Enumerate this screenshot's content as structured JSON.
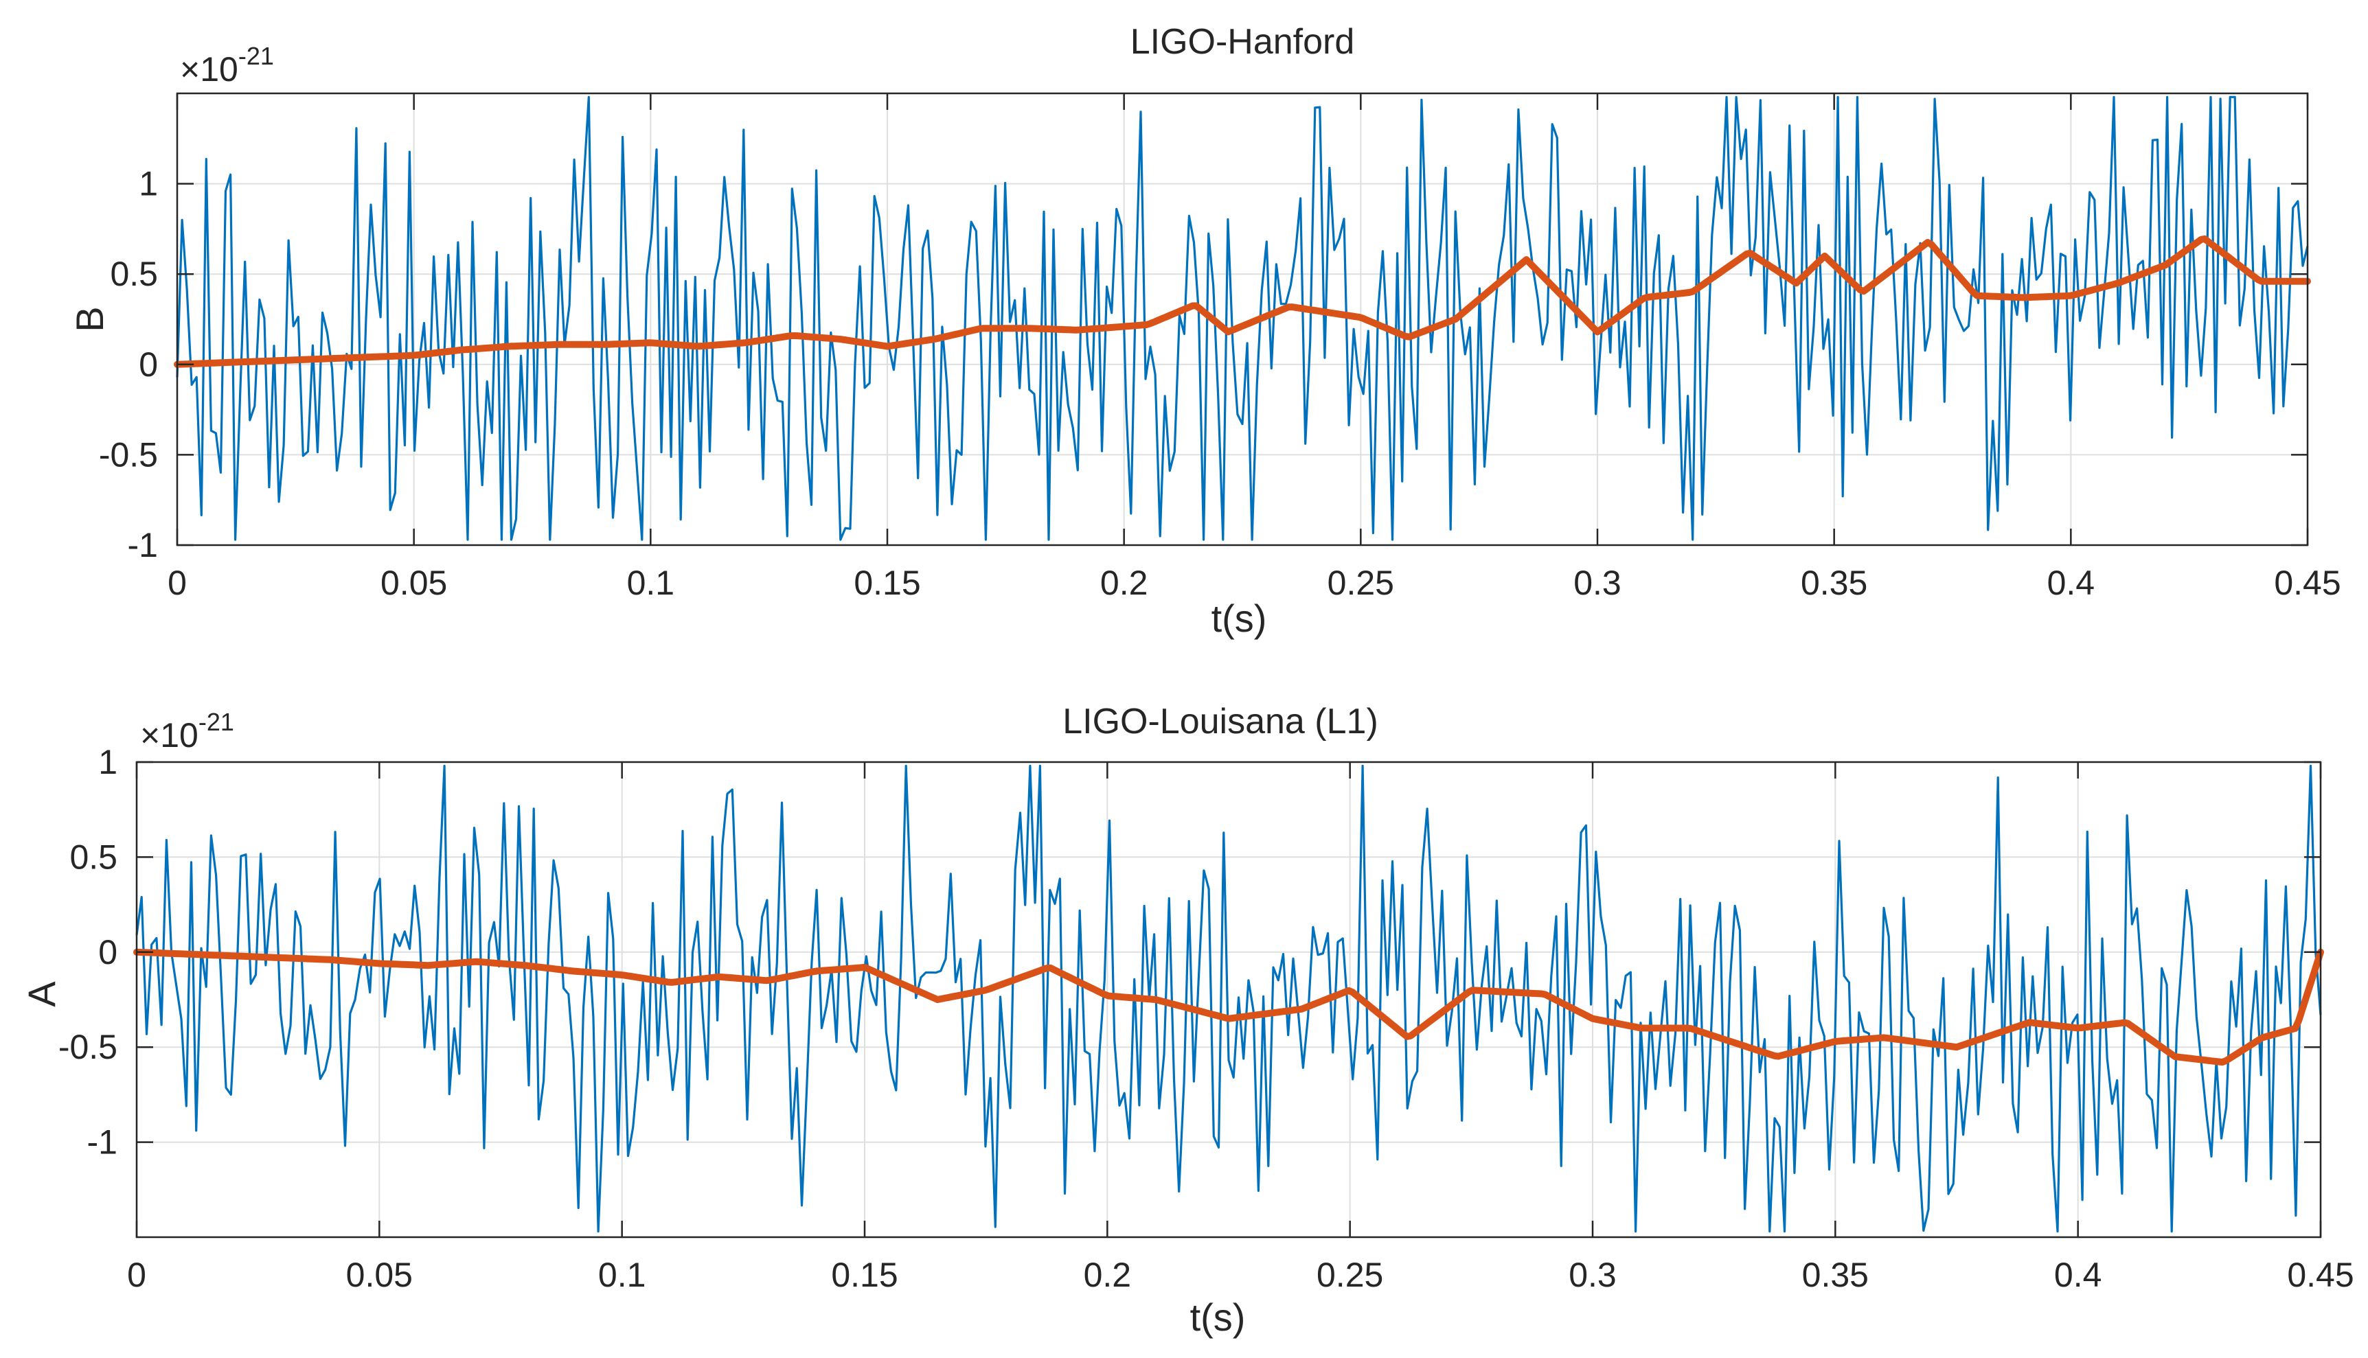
{
  "chart_data": [
    {
      "type": "line",
      "title": "LIGO-Hanford",
      "xlabel": "t(s)",
      "ylabel": "B",
      "exponent_prefix": "×10",
      "exponent": "-21",
      "xlim": [
        0,
        0.45
      ],
      "ylim": [
        -1,
        1.5
      ],
      "xticks": [
        0,
        0.05,
        0.1,
        0.15,
        0.2,
        0.25,
        0.3,
        0.35,
        0.4,
        0.45
      ],
      "xtick_labels": [
        "0",
        "0.05",
        "0.1",
        "0.15",
        "0.2",
        "0.25",
        "0.3",
        "0.35",
        "0.4",
        "0.45"
      ],
      "yticks": [
        -1,
        -0.5,
        0,
        0.5,
        1
      ],
      "ytick_labels": [
        "-1",
        "-0.5",
        "0",
        "0.5",
        "1"
      ],
      "grid": true,
      "colors": {
        "raw": "#0072BD",
        "smoothed": "#D95319"
      },
      "series": [
        {
          "x": [
            0,
            0.01,
            0.02,
            0.03,
            0.04,
            0.05,
            0.06,
            0.07,
            0.08,
            0.09,
            0.1,
            0.11,
            0.12,
            0.13,
            0.14,
            0.15,
            0.16,
            0.17,
            0.18,
            0.19,
            0.2,
            0.205,
            0.215,
            0.222,
            0.235,
            0.25,
            0.26,
            0.27,
            0.285,
            0.3,
            0.31,
            0.32,
            0.332,
            0.342,
            0.348,
            0.356,
            0.37,
            0.38,
            0.39,
            0.4,
            0.41,
            0.42,
            0.428,
            0.44,
            0.45
          ],
          "y": [
            0,
            0.01,
            0.02,
            0.03,
            0.04,
            0.05,
            0.08,
            0.1,
            0.11,
            0.11,
            0.12,
            0.1,
            0.12,
            0.16,
            0.14,
            0.1,
            0.14,
            0.2,
            0.2,
            0.19,
            0.21,
            0.22,
            0.33,
            0.18,
            0.32,
            0.26,
            0.15,
            0.25,
            0.58,
            0.18,
            0.37,
            0.4,
            0.62,
            0.45,
            0.6,
            0.4,
            0.68,
            0.38,
            0.37,
            0.38,
            0.45,
            0.55,
            0.7,
            0.46,
            0.46
          ]
        }
      ]
    },
    {
      "type": "line",
      "title": "LIGO-Louisana (L1)",
      "xlabel": "t(s)",
      "ylabel": "A",
      "exponent_prefix": "×10",
      "exponent": "-21",
      "xlim": [
        0,
        0.45
      ],
      "ylim": [
        -1.5,
        1
      ],
      "xticks": [
        0,
        0.05,
        0.1,
        0.15,
        0.2,
        0.25,
        0.3,
        0.35,
        0.4,
        0.45
      ],
      "xtick_labels": [
        "0",
        "0.05",
        "0.1",
        "0.15",
        "0.2",
        "0.25",
        "0.3",
        "0.35",
        "0.4",
        "0.45"
      ],
      "yticks": [
        -1,
        -0.5,
        0,
        0.5,
        1
      ],
      "ytick_labels": [
        "-1",
        "-0.5",
        "0",
        "0.5",
        "1"
      ],
      "grid": true,
      "colors": {
        "raw": "#0072BD",
        "smoothed": "#D95319"
      },
      "series": [
        {
          "x": [
            0,
            0.01,
            0.02,
            0.03,
            0.04,
            0.05,
            0.06,
            0.07,
            0.08,
            0.09,
            0.1,
            0.11,
            0.12,
            0.13,
            0.14,
            0.15,
            0.165,
            0.175,
            0.188,
            0.2,
            0.21,
            0.225,
            0.24,
            0.25,
            0.262,
            0.275,
            0.29,
            0.3,
            0.31,
            0.32,
            0.338,
            0.35,
            0.36,
            0.375,
            0.39,
            0.4,
            0.41,
            0.42,
            0.43,
            0.438,
            0.445,
            0.45
          ],
          "y": [
            0,
            -0.01,
            -0.02,
            -0.03,
            -0.04,
            -0.06,
            -0.07,
            -0.05,
            -0.07,
            -0.1,
            -0.12,
            -0.16,
            -0.13,
            -0.15,
            -0.1,
            -0.08,
            -0.25,
            -0.2,
            -0.08,
            -0.23,
            -0.25,
            -0.35,
            -0.3,
            -0.2,
            -0.45,
            -0.2,
            -0.22,
            -0.35,
            -0.4,
            -0.4,
            -0.55,
            -0.47,
            -0.45,
            -0.5,
            -0.37,
            -0.4,
            -0.37,
            -0.55,
            -0.58,
            -0.45,
            -0.4,
            0
          ]
        }
      ]
    }
  ]
}
